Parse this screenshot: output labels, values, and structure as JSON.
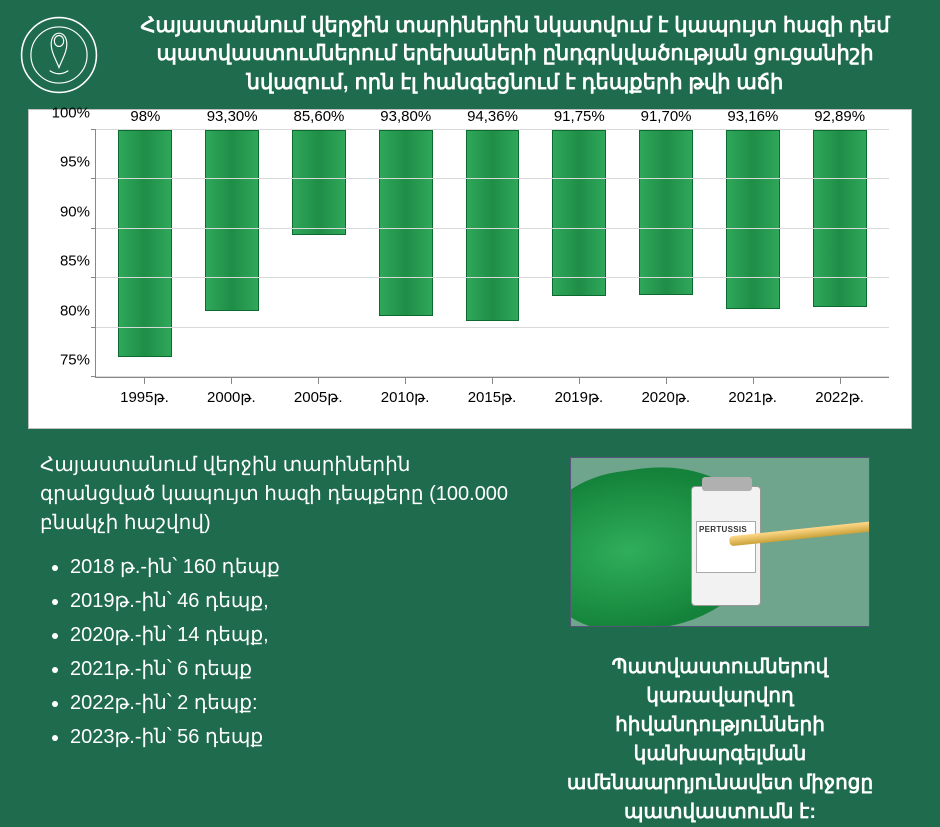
{
  "header": {
    "title": "Հայաստանում վերջին տարիներին նկատվում է կապույտ հազի դեմ պատվաստումներում երեխաների ընդգրկվածության ցուցանիշի նվազում, որն էլ հանգեցնում է դեպքերի թվի աճի"
  },
  "chart": {
    "type": "bar",
    "ylim": [
      75,
      100
    ],
    "ytick_step": 5,
    "yticks": [
      75,
      80,
      85,
      90,
      95,
      100
    ],
    "ytick_suffix": "%",
    "categories": [
      "1995թ.",
      "2000թ.",
      "2005թ.",
      "2010թ.",
      "2015թ.",
      "2019թ.",
      "2020թ.",
      "2021թ.",
      "2022թ."
    ],
    "values": [
      98,
      93.3,
      85.6,
      93.8,
      94.36,
      91.75,
      91.7,
      93.16,
      92.89
    ],
    "value_labels": [
      "98%",
      "93,30%",
      "85,60%",
      "93,80%",
      "94,36%",
      "91,75%",
      "91,70%",
      "93,16%",
      "92,89%"
    ],
    "bar_color": "#239b46",
    "bar_border": "#0b6b2f",
    "grid_color": "#d9d9d9",
    "background_color": "#ffffff",
    "axis_color": "#888888",
    "label_fontsize": 15,
    "tick_fontsize": 15
  },
  "cases": {
    "title": "Հայաստանում վերջին տարիներին գրանցված կապույտ հազի դեպքերը (100.000 բնակչի հաշվով)",
    "items": [
      "2018 թ.-ին՝ 160 դեպք",
      "2019թ.-ին՝ 46 դեպք,",
      "2020թ.-ին՝ 14 դեպք,",
      "2021թ.-ին՝ 6 դեպք",
      "2022թ.-ին՝ 2 դեպք:",
      "2023թ.-ին՝ 56 դեպք"
    ]
  },
  "vial": {
    "label": "PERTUSSIS"
  },
  "conclusion": "Պատվաստումներով կառավարվող հիվանդությունների կանխարգելման ամենաարդյունավետ միջոցը պատվաստումն է:",
  "colors": {
    "page_bg": "#1e6b4e",
    "text": "#ffffff"
  }
}
